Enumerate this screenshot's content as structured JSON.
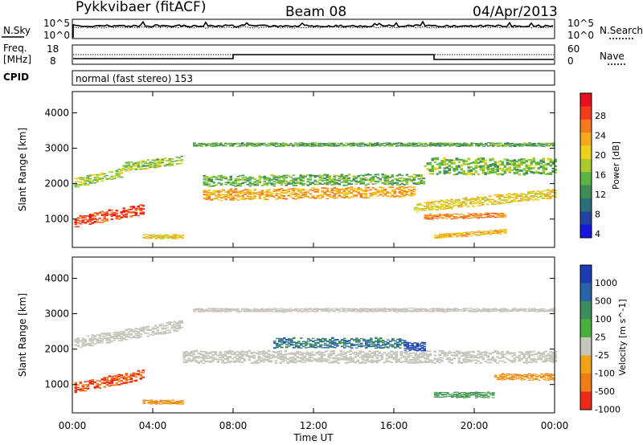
{
  "header": {
    "station": "Pykkvibaer (fitACF)",
    "beam": "Beam 08",
    "date": "04/Apr/2013"
  },
  "noise_panel": {
    "left_label": "N.Sky",
    "left_ticks": [
      "10^5",
      "10^0"
    ],
    "right_ticks": [
      "10^5",
      "10^0"
    ],
    "right_label": "N.Search"
  },
  "freq_panel": {
    "left_label_1": "Freq.",
    "left_label_2": "[MHz]",
    "left_ticks": [
      "18",
      "8"
    ],
    "right_ticks": [
      "60",
      "0"
    ],
    "right_label": "Nave"
  },
  "cpid_panel": {
    "label": "CPID",
    "text": "normal (fast stereo) 153"
  },
  "x_axis": {
    "label": "Time UT",
    "ticks": [
      "00:00",
      "04:00",
      "08:00",
      "12:00",
      "16:00",
      "20:00",
      "00:00"
    ]
  },
  "y_axis": {
    "label": "Slant Range [km]",
    "ticks": [
      "1000",
      "2000",
      "3000",
      "4000"
    ]
  },
  "power_colorbar": {
    "label": "Power [dB]",
    "ticks": [
      "28",
      "24",
      "20",
      "16",
      "12",
      "8",
      "4"
    ],
    "colors": [
      "#e8101c",
      "#f23c1a",
      "#f8781c",
      "#f7a81e",
      "#efd11d",
      "#a9cc2c",
      "#5bb444",
      "#3f8c58",
      "#2c6e79",
      "#2143a2",
      "#1818dc"
    ]
  },
  "velocity_colorbar": {
    "label": "Velocity [m s^-1]",
    "ticks": [
      "1000",
      "500",
      "100",
      "25",
      "-25",
      "-100",
      "-500",
      "-1000"
    ],
    "colors": [
      "#1b3fb3",
      "#2a63a7",
      "#3b8e5b",
      "#48b13c",
      "#c8c6bc",
      "#f0a218",
      "#f07d14",
      "#ee2a17"
    ]
  },
  "chart_data": {
    "type": "heatmap",
    "panels": [
      {
        "name": "power",
        "xlim": [
          0,
          24
        ],
        "ylim": [
          200,
          4600
        ],
        "unit": "dB",
        "scale_range": [
          0,
          30
        ],
        "bands": [
          {
            "t": [
              0.1,
              3.5
            ],
            "center": [
              900,
              1250
            ],
            "width": 300,
            "value": 27
          },
          {
            "t": [
              0.1,
              2.5
            ],
            "center": [
              2000,
              2300
            ],
            "width": 250,
            "value": 15
          },
          {
            "t": [
              2.5,
              5.5
            ],
            "center": [
              2450,
              2650
            ],
            "width": 250,
            "value": 14
          },
          {
            "t": [
              3.5,
              5.5
            ],
            "center": [
              500,
              500
            ],
            "width": 120,
            "value": 18
          },
          {
            "t": [
              6.5,
              17
            ],
            "center": [
              1650,
              1750
            ],
            "width": 300,
            "value": 21
          },
          {
            "t": [
              17,
              24
            ],
            "center": [
              1300,
              1700
            ],
            "width": 260,
            "value": 18
          },
          {
            "t": [
              17.5,
              21.5
            ],
            "center": [
              1050,
              1100
            ],
            "width": 150,
            "value": 23
          },
          {
            "t": [
              18,
              21.5
            ],
            "center": [
              500,
              650
            ],
            "width": 120,
            "value": 20
          },
          {
            "t": [
              6.5,
              17.5
            ],
            "center": [
              2050,
              2100
            ],
            "width": 300,
            "value": 12
          },
          {
            "t": [
              6,
              24
            ],
            "center": [
              3100,
              3100
            ],
            "width": 100,
            "value": 11
          },
          {
            "t": [
              17.5,
              24
            ],
            "center": [
              2450,
              2450
            ],
            "width": 450,
            "value": 13
          }
        ]
      },
      {
        "name": "velocity",
        "xlim": [
          0,
          24
        ],
        "ylim": [
          200,
          4600
        ],
        "unit": "m s^-1",
        "bands": [
          {
            "t": [
              0.1,
              3.5
            ],
            "center": [
              900,
              1250
            ],
            "width": 300,
            "value": -500
          },
          {
            "t": [
              0.1,
              5.5
            ],
            "center": [
              2150,
              2650
            ],
            "width": 300,
            "value": 0
          },
          {
            "t": [
              3.5,
              5.5
            ],
            "center": [
              500,
              500
            ],
            "width": 120,
            "value": -100
          },
          {
            "t": [
              5.5,
              24
            ],
            "center": [
              1750,
              1750
            ],
            "width": 340,
            "value": 0
          },
          {
            "t": [
              6,
              24
            ],
            "center": [
              3100,
              3100
            ],
            "width": 100,
            "value": 0
          },
          {
            "t": [
              10,
              16.5
            ],
            "center": [
              2150,
              2150
            ],
            "width": 280,
            "value": 300
          },
          {
            "t": [
              16.5,
              17.5
            ],
            "center": [
              2050,
              2050
            ],
            "width": 240,
            "value": 900
          },
          {
            "t": [
              18,
              21
            ],
            "center": [
              700,
              700
            ],
            "width": 160,
            "value": 110
          },
          {
            "t": [
              21,
              24
            ],
            "center": [
              1200,
              1200
            ],
            "width": 180,
            "value": -100
          }
        ]
      }
    ]
  }
}
